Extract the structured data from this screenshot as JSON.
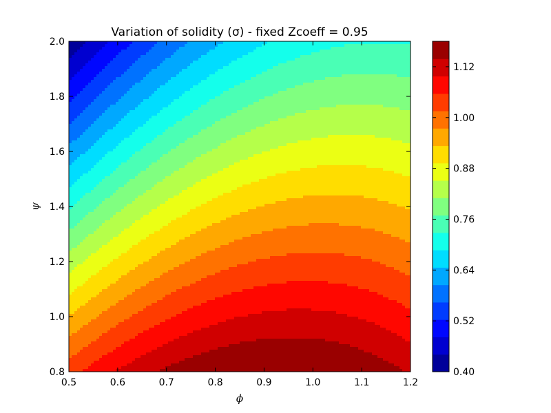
{
  "chart_data": {
    "type": "contour",
    "title": "Variation of solidity (σ) - fixed Zcoeff = 0.95",
    "xlabel": "ϕ",
    "ylabel": "ψ",
    "xlim": [
      0.5,
      1.2
    ],
    "ylim": [
      0.8,
      2.0
    ],
    "xticks": [
      "0.5",
      "0.6",
      "0.7",
      "0.8",
      "0.9",
      "1.0",
      "1.1",
      "1.2"
    ],
    "yticks": [
      "0.8",
      "1.0",
      "1.2",
      "1.4",
      "1.6",
      "1.8",
      "2.0"
    ],
    "colorbar": {
      "min": 0.4,
      "max": 1.18,
      "step": 0.04,
      "ticks": [
        "0.40",
        "0.52",
        "0.64",
        "0.76",
        "0.88",
        "1.00",
        "1.12"
      ],
      "tick_values": [
        0.4,
        0.52,
        0.64,
        0.76,
        0.88,
        1.0,
        1.12
      ]
    },
    "colormap": "jet",
    "grid": false,
    "sample_values": [
      {
        "phi": 0.5,
        "psi": 2.0,
        "sigma": 0.42
      },
      {
        "phi": 0.5,
        "psi": 0.8,
        "sigma": 0.96
      },
      {
        "phi": 0.9,
        "psi": 0.8,
        "sigma": 1.16
      },
      {
        "phi": 1.2,
        "psi": 0.8,
        "sigma": 1.08
      },
      {
        "phi": 1.2,
        "psi": 2.0,
        "sigma": 0.7
      },
      {
        "phi": 0.9,
        "psi": 1.4,
        "sigma": 0.85
      },
      {
        "phi": 0.5,
        "psi": 1.4,
        "sigma": 0.62
      }
    ]
  }
}
